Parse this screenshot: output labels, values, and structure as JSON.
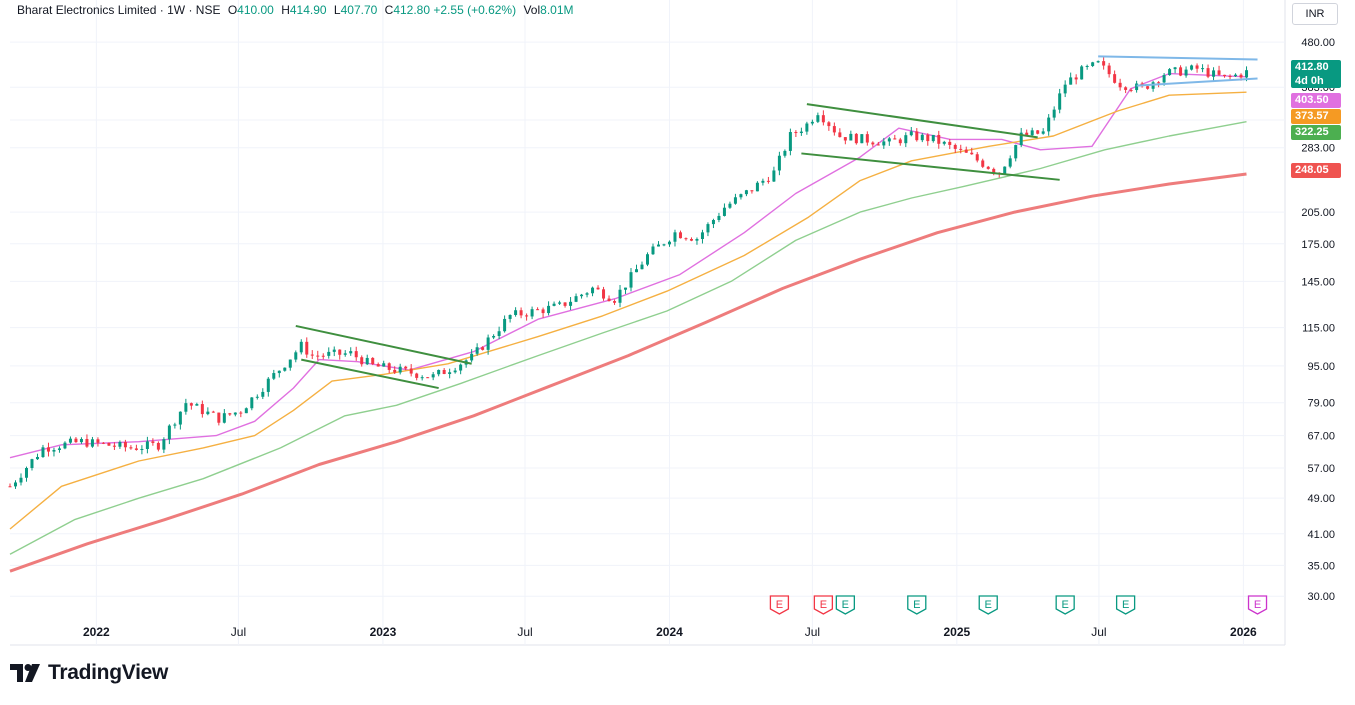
{
  "header": {
    "symbol": "Bharat Electronics Limited",
    "interval": "1W",
    "exchange": "NSE",
    "open_label": "O",
    "open": "410.00",
    "high_label": "H",
    "high": "414.90",
    "low_label": "L",
    "low": "407.70",
    "close_label": "C",
    "close": "412.80",
    "change": "+2.55 (+0.62%)",
    "volume_label": "Vol",
    "volume": "8.01M"
  },
  "currency": "INR",
  "brand": {
    "name": "TradingView",
    "icon": "tradingview-logo-icon"
  },
  "colors": {
    "up": "#089981",
    "down": "#f23645",
    "ema_short": "#e070e0",
    "ema_mid": "#f5b042",
    "ema_long": "#8fcf8f",
    "ema_longest": "#ee7c7c",
    "trendline_green": "#3f8f3f",
    "trendline_blue": "#7fb8e8"
  },
  "badges": {
    "last_price": "412.80",
    "countdown": "4d 0h",
    "ema_short": "403.50",
    "ema_mid": "373.57",
    "ema_long": "322.25",
    "ema_longest": "248.05"
  },
  "chart_data": {
    "type": "candlestick",
    "title": "",
    "xlabel": "",
    "ylabel": "",
    "y_scale": "log",
    "ylim": [
      28,
      510
    ],
    "xlim": [
      "2021-09-13",
      "2026-02-23"
    ],
    "y_ticks": [
      "480.00",
      "383.00",
      "325.00",
      "283.00",
      "205.00",
      "175.00",
      "145.00",
      "115.00",
      "95.00",
      "79.00",
      "67.00",
      "57.00",
      "49.00",
      "41.00",
      "35.00",
      "30.00"
    ],
    "x_ticks": [
      {
        "label": "2022",
        "date": "2022-01-01"
      },
      {
        "label": "Jul",
        "date": "2022-07-01"
      },
      {
        "label": "2023",
        "date": "2023-01-01"
      },
      {
        "label": "Jul",
        "date": "2023-07-01"
      },
      {
        "label": "2024",
        "date": "2024-01-01"
      },
      {
        "label": "Jul",
        "date": "2024-07-01"
      },
      {
        "label": "2025",
        "date": "2025-01-01"
      },
      {
        "label": "Jul",
        "date": "2025-07-01"
      },
      {
        "label": "2026",
        "date": "2026-01-01"
      }
    ],
    "grid": true,
    "price_path": [
      [
        "2021-09-13",
        52
      ],
      [
        "2021-10-25",
        63
      ],
      [
        "2021-12-13",
        65
      ],
      [
        "2022-02-14",
        63
      ],
      [
        "2022-03-21",
        64
      ],
      [
        "2022-04-25",
        79
      ],
      [
        "2022-06-06",
        73
      ],
      [
        "2022-07-04",
        76
      ],
      [
        "2022-09-19",
        105
      ],
      [
        "2022-10-03",
        100
      ],
      [
        "2022-11-21",
        101
      ],
      [
        "2022-12-19",
        95
      ],
      [
        "2023-03-06",
        90
      ],
      [
        "2023-04-24",
        99
      ],
      [
        "2023-06-12",
        122
      ],
      [
        "2023-08-14",
        128
      ],
      [
        "2023-09-25",
        140
      ],
      [
        "2023-10-23",
        133
      ],
      [
        "2023-12-04",
        165
      ],
      [
        "2024-01-08",
        185
      ],
      [
        "2024-02-05",
        180
      ],
      [
        "2024-03-11",
        210
      ],
      [
        "2024-04-15",
        230
      ],
      [
        "2024-05-13",
        250
      ],
      [
        "2024-06-03",
        300
      ],
      [
        "2024-06-24",
        318
      ],
      [
        "2024-07-08",
        340
      ],
      [
        "2024-08-05",
        300
      ],
      [
        "2024-10-07",
        290
      ],
      [
        "2024-11-04",
        300
      ],
      [
        "2024-12-02",
        295
      ],
      [
        "2025-01-20",
        270
      ],
      [
        "2025-02-24",
        250
      ],
      [
        "2025-03-24",
        300
      ],
      [
        "2025-04-21",
        305
      ],
      [
        "2025-05-19",
        390
      ],
      [
        "2025-06-09",
        415
      ],
      [
        "2025-06-30",
        430
      ],
      [
        "2025-07-28",
        390
      ],
      [
        "2025-08-25",
        380
      ],
      [
        "2025-09-22",
        410
      ],
      [
        "2025-11-03",
        420
      ],
      [
        "2025-12-08",
        400
      ],
      [
        "2026-01-05",
        412.8
      ]
    ],
    "series": [
      {
        "values": [
          [
            0,
            60
          ],
          [
            4,
            64
          ],
          [
            10,
            65
          ],
          [
            16,
            67
          ],
          [
            19,
            72
          ],
          [
            22,
            85
          ],
          [
            24,
            98
          ],
          [
            27,
            97
          ],
          [
            31,
            93
          ],
          [
            36,
            102
          ],
          [
            41,
            120
          ],
          [
            47,
            133
          ],
          [
            52,
            150
          ],
          [
            57,
            185
          ],
          [
            61,
            225
          ],
          [
            66,
            270
          ],
          [
            69,
            312
          ],
          [
            73,
            295
          ],
          [
            77,
            295
          ],
          [
            80,
            280
          ],
          [
            84,
            285
          ],
          [
            87,
            380
          ],
          [
            90,
            410
          ],
          [
            96,
            403.5
          ]
        ],
        "kind": "ema_short"
      },
      {
        "values": [
          [
            0,
            42
          ],
          [
            4,
            52
          ],
          [
            10,
            59
          ],
          [
            15,
            63
          ],
          [
            19,
            67
          ],
          [
            22,
            76
          ],
          [
            25,
            88
          ],
          [
            29,
            91
          ],
          [
            34,
            96
          ],
          [
            41,
            110
          ],
          [
            46,
            122
          ],
          [
            51,
            138
          ],
          [
            57,
            165
          ],
          [
            62,
            200
          ],
          [
            66,
            240
          ],
          [
            70,
            265
          ],
          [
            76,
            285
          ],
          [
            81,
            300
          ],
          [
            86,
            340
          ],
          [
            90,
            368
          ],
          [
            96,
            373.57
          ]
        ],
        "kind": "ema_mid"
      },
      {
        "values": [
          [
            0,
            37
          ],
          [
            5,
            44
          ],
          [
            10,
            49
          ],
          [
            15,
            54
          ],
          [
            21,
            63
          ],
          [
            26,
            74
          ],
          [
            30,
            78
          ],
          [
            35,
            87
          ],
          [
            41,
            100
          ],
          [
            46,
            112
          ],
          [
            51,
            125
          ],
          [
            56,
            145
          ],
          [
            61,
            178
          ],
          [
            66,
            205
          ],
          [
            70,
            220
          ],
          [
            74,
            233
          ],
          [
            80,
            255
          ],
          [
            85,
            280
          ],
          [
            90,
            300
          ],
          [
            96,
            322.25
          ]
        ],
        "kind": "ema_long"
      },
      {
        "values": [
          [
            0,
            34
          ],
          [
            6,
            39
          ],
          [
            12,
            44
          ],
          [
            18,
            50
          ],
          [
            24,
            58
          ],
          [
            30,
            65
          ],
          [
            36,
            74
          ],
          [
            42,
            86
          ],
          [
            48,
            100
          ],
          [
            54,
            118
          ],
          [
            60,
            140
          ],
          [
            66,
            162
          ],
          [
            72,
            185
          ],
          [
            78,
            205
          ],
          [
            84,
            222
          ],
          [
            90,
            236
          ],
          [
            96,
            248.05
          ]
        ],
        "kind": "ema_longest"
      }
    ],
    "ema_x_range": [
      "2021-09-13",
      "2026-01-05"
    ],
    "trendlines": [
      {
        "kind": "green",
        "from": [
          "2022-09-12",
          116
        ],
        "to": [
          "2023-04-24",
          96
        ]
      },
      {
        "kind": "green",
        "from": [
          "2022-09-19",
          98
        ],
        "to": [
          "2023-03-13",
          85
        ]
      },
      {
        "kind": "green",
        "from": [
          "2024-06-24",
          352
        ],
        "to": [
          "2025-04-14",
          298
        ]
      },
      {
        "kind": "green",
        "from": [
          "2024-06-17",
          275
        ],
        "to": [
          "2025-05-12",
          241
        ]
      },
      {
        "kind": "blue",
        "from": [
          "2025-06-30",
          447
        ],
        "to": [
          "2026-01-19",
          440
        ]
      },
      {
        "kind": "blue",
        "from": [
          "2025-08-18",
          386
        ],
        "to": [
          "2026-01-19",
          400
        ]
      }
    ],
    "events": [
      {
        "date": "2024-05-20",
        "label": "E",
        "kind": "down"
      },
      {
        "date": "2024-08-12",
        "label": "E",
        "kind": "up"
      },
      {
        "date": "2024-07-15",
        "label": "E",
        "kind": "down"
      },
      {
        "date": "2024-11-11",
        "label": "E",
        "kind": "up"
      },
      {
        "date": "2025-02-10",
        "label": "E",
        "kind": "up"
      },
      {
        "date": "2025-05-19",
        "label": "E",
        "kind": "up"
      },
      {
        "date": "2025-08-04",
        "label": "E",
        "kind": "up"
      },
      {
        "date": "2026-01-19",
        "label": "E",
        "kind": "future"
      }
    ]
  }
}
